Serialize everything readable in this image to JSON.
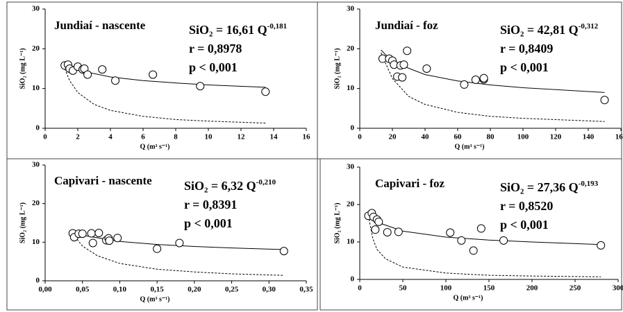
{
  "chart_data": [
    {
      "type": "scatter",
      "title": "Jundiaí - nascente",
      "xlabel": "Q (m³ s⁻¹)",
      "ylabel": "SiO₂ (mg L⁻¹)",
      "annotations": {
        "equation": "SiO₂ = 16,61 Q",
        "exponent": "-0,181",
        "r": "r = 0,8978",
        "p": "p < 0,001"
      },
      "xlim": [
        0,
        16
      ],
      "xticks": [
        0,
        2,
        4,
        6,
        8,
        10,
        12,
        14,
        16
      ],
      "ylim": [
        0,
        30
      ],
      "yticks": [
        0,
        10,
        20,
        30
      ],
      "x": [
        1.2,
        1.4,
        1.5,
        1.7,
        2.0,
        2.3,
        2.4,
        2.6,
        3.5,
        4.3,
        6.6,
        9.5,
        13.5
      ],
      "values": [
        15.8,
        16,
        15,
        14.5,
        15.5,
        14.8,
        15,
        13.5,
        14.8,
        12,
        13.5,
        10.6,
        9.2
      ],
      "curves": [
        {
          "style": "solid",
          "x": [
            1.2,
            2,
            4,
            6,
            8,
            10,
            13.5
          ],
          "values": [
            16.05,
            14.6,
            12.9,
            12.0,
            11.4,
            10.9,
            10.3
          ]
        },
        {
          "style": "dashed",
          "x": [
            1.2,
            1.5,
            2,
            3,
            4,
            6,
            8,
            10,
            13.5
          ],
          "values": [
            15,
            12,
            9,
            6,
            4.5,
            3,
            2.2,
            1.8,
            1.3
          ]
        }
      ]
    },
    {
      "type": "scatter",
      "title": "Jundiaí - foz",
      "xlabel": "Q (m³ s⁻¹)",
      "ylabel": "SiO₂ (mg L⁻¹)",
      "annotations": {
        "equation": "SiO₂ = 42,81 Q",
        "exponent": "-0,312",
        "r": "r = 0,8409",
        "p": "p < 0,001"
      },
      "xlim": [
        0,
        160
      ],
      "xticks": [
        0,
        20,
        40,
        60,
        80,
        100,
        120,
        140,
        160
      ],
      "ylim": [
        0,
        30
      ],
      "yticks": [
        0,
        10,
        20,
        30
      ],
      "x": [
        14,
        18,
        20,
        21,
        23,
        25,
        26,
        27,
        29,
        41,
        64,
        71,
        76,
        76,
        150
      ],
      "values": [
        17.5,
        17.5,
        17,
        16,
        13,
        15.8,
        12.8,
        16,
        19.5,
        15,
        11,
        12.2,
        12.3,
        12.6,
        7.1
      ],
      "curves": [
        {
          "style": "solid",
          "x": [
            13,
            20,
            40,
            60,
            80,
            100,
            150
          ],
          "values": [
            19.7,
            16.7,
            13.5,
            11.9,
            10.9,
            10.2,
            9.0
          ]
        },
        {
          "style": "dashed",
          "x": [
            13,
            20,
            30,
            40,
            60,
            80,
            100,
            150
          ],
          "values": [
            19,
            12.5,
            8,
            6,
            4,
            3,
            2.5,
            1.7
          ]
        }
      ]
    },
    {
      "type": "scatter",
      "title": "Capivari - nascente",
      "xlabel": "Q (m³ s⁻¹)",
      "ylabel": "SiO₂ (mg L⁻¹)",
      "annotations": {
        "equation": "SiO₂ = 6,32 Q",
        "exponent": "-0,210",
        "r": "r = 0,8391",
        "p": "p < 0,001"
      },
      "xlim": [
        0,
        0.35
      ],
      "xticks": [
        {
          "value": 0,
          "label": "0,00"
        },
        {
          "value": 0.05,
          "label": "0,05"
        },
        {
          "value": 0.1,
          "label": "0,10"
        },
        {
          "value": 0.15,
          "label": "0,15"
        },
        {
          "value": 0.2,
          "label": "0,20"
        },
        {
          "value": 0.25,
          "label": "0,25"
        },
        {
          "value": 0.3,
          "label": "0,30"
        },
        {
          "value": 0.35,
          "label": "0,35"
        }
      ],
      "ylim": [
        0,
        30
      ],
      "yticks": [
        0,
        10,
        20,
        30
      ],
      "x": [
        0.037,
        0.039,
        0.045,
        0.05,
        0.062,
        0.064,
        0.072,
        0.082,
        0.085,
        0.086,
        0.097,
        0.15,
        0.18,
        0.32
      ],
      "values": [
        12.3,
        11.3,
        12.2,
        12.2,
        12.3,
        9.8,
        12.4,
        10.5,
        11,
        10.4,
        11.1,
        8.3,
        9.8,
        7.7
      ],
      "curves": [
        {
          "style": "solid",
          "x": [
            0.037,
            0.05,
            0.1,
            0.15,
            0.2,
            0.25,
            0.32
          ],
          "values": [
            12.6,
            11.8,
            10.2,
            9.4,
            8.9,
            8.5,
            8.1
          ]
        },
        {
          "style": "dashed",
          "x": [
            0.037,
            0.05,
            0.07,
            0.1,
            0.15,
            0.2,
            0.25,
            0.32
          ],
          "values": [
            12.2,
            9,
            6.5,
            4.5,
            3,
            2.3,
            1.8,
            1.4
          ]
        }
      ]
    },
    {
      "type": "scatter",
      "title": "Capivari - foz",
      "xlabel": "Q (m³ s⁻¹)",
      "ylabel": "SiO₂ (mg L⁻¹)",
      "annotations": {
        "equation": "SiO₂ = 27,36 Q",
        "exponent": "-0,193",
        "r": "r = 0,8520",
        "p": "p < 0,001"
      },
      "xlim": [
        0,
        300
      ],
      "xticks": [
        0,
        50,
        100,
        150,
        200,
        250,
        300
      ],
      "ylim": [
        0,
        30
      ],
      "yticks": [
        0,
        10,
        20,
        30
      ],
      "x": [
        10,
        14,
        16,
        18,
        20,
        22,
        32,
        45,
        105,
        118,
        132,
        141,
        167,
        280
      ],
      "values": [
        17,
        17.7,
        16.7,
        13.3,
        16,
        15.4,
        12.6,
        12.7,
        12.5,
        10.4,
        7.7,
        13.6,
        10.4,
        9.1
      ],
      "curves": [
        {
          "style": "solid",
          "x": [
            10,
            20,
            50,
            100,
            150,
            200,
            280
          ],
          "values": [
            17.5,
            15.3,
            12.9,
            11.3,
            10.5,
            10.0,
            9.3
          ]
        },
        {
          "style": "dashed",
          "x": [
            10,
            15,
            20,
            30,
            50,
            100,
            150,
            200,
            280
          ],
          "values": [
            17,
            11,
            8,
            5.5,
            3.3,
            1.7,
            1.1,
            0.9,
            0.7
          ]
        }
      ]
    }
  ]
}
